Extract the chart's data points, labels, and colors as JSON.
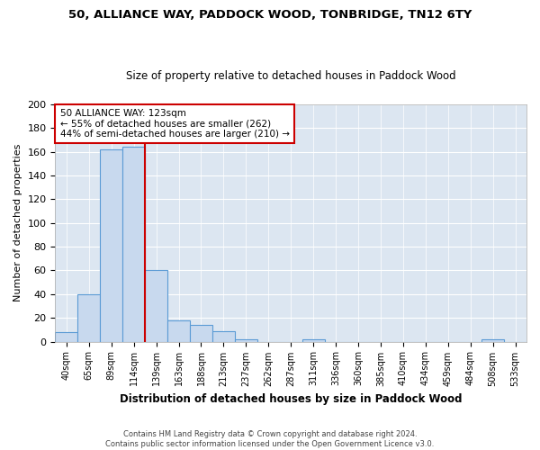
{
  "title1": "50, ALLIANCE WAY, PADDOCK WOOD, TONBRIDGE, TN12 6TY",
  "title2": "Size of property relative to detached houses in Paddock Wood",
  "xlabel": "Distribution of detached houses by size in Paddock Wood",
  "ylabel": "Number of detached properties",
  "footnote": "Contains HM Land Registry data © Crown copyright and database right 2024.\nContains public sector information licensed under the Open Government Licence v3.0.",
  "bin_labels": [
    "40sqm",
    "65sqm",
    "89sqm",
    "114sqm",
    "139sqm",
    "163sqm",
    "188sqm",
    "213sqm",
    "237sqm",
    "262sqm",
    "287sqm",
    "311sqm",
    "336sqm",
    "360sqm",
    "385sqm",
    "410sqm",
    "434sqm",
    "459sqm",
    "484sqm",
    "508sqm",
    "533sqm"
  ],
  "bar_heights": [
    8,
    40,
    162,
    164,
    60,
    18,
    14,
    9,
    2,
    0,
    0,
    2,
    0,
    0,
    0,
    0,
    0,
    0,
    0,
    2,
    0
  ],
  "bar_color": "#c8d9ee",
  "bar_edge_color": "#5b9bd5",
  "fig_background_color": "#ffffff",
  "axes_background_color": "#dce6f1",
  "grid_color": "#ffffff",
  "vline_x": 3.5,
  "vline_color": "#cc0000",
  "annotation_text": "50 ALLIANCE WAY: 123sqm\n← 55% of detached houses are smaller (262)\n44% of semi-detached houses are larger (210) →",
  "annotation_box_color": "#ffffff",
  "annotation_box_edge": "#cc0000",
  "ylim": [
    0,
    200
  ],
  "yticks": [
    0,
    20,
    40,
    60,
    80,
    100,
    120,
    140,
    160,
    180,
    200
  ]
}
